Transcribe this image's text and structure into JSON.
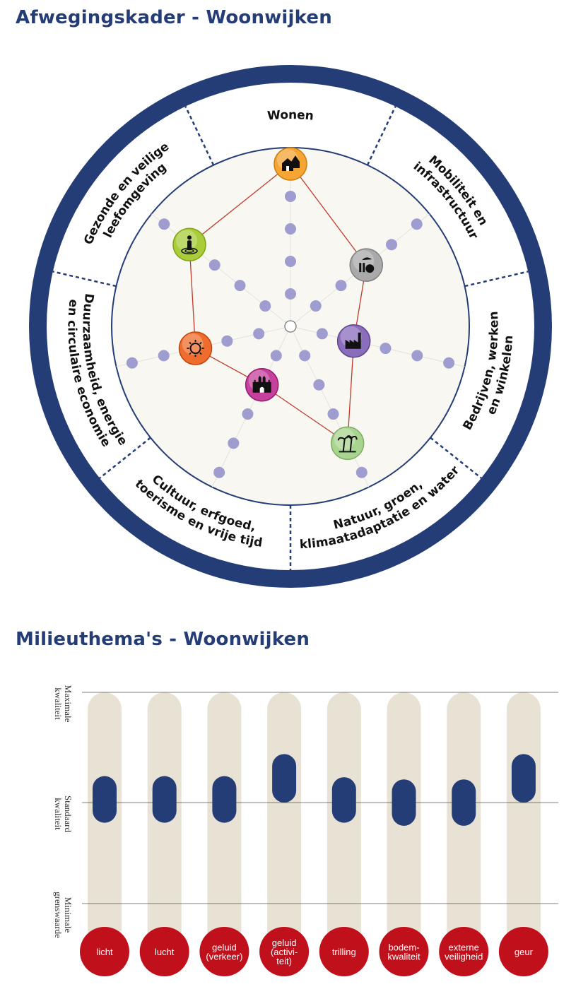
{
  "sections": {
    "wheel_title": "Afwegingskader - Woonwijken",
    "bars_title": "Milieuthema's - Woonwijken"
  },
  "chart_data": [
    {
      "type": "radar",
      "title": "Afwegingskader - Woonwijken",
      "scale_max": 5,
      "categories": [
        {
          "label_lines": [
            "Wonen"
          ],
          "icon": "houses-icon",
          "icon_color": "#f4a534",
          "value": 5,
          "angle": 90
        },
        {
          "label_lines": [
            "Mobiliteit en",
            "infrastructuur"
          ],
          "icon": "transport-icon",
          "icon_color": "#a9a9a9",
          "value": 3,
          "angle": 39
        },
        {
          "label_lines": [
            "Bedrijven, werken",
            "en winkelen"
          ],
          "icon": "factory-icon",
          "icon_color": "#8a6dbb",
          "value": 2,
          "angle": -13
        },
        {
          "label_lines": [
            "Natuur, groen,",
            "klimaatadaptatie en water"
          ],
          "icon": "palm-trees-icon",
          "icon_color": "#a9d48f",
          "value": 4,
          "angle": -64
        },
        {
          "label_lines": [
            "Cultuur, erfgoed,",
            "toerisme en vrije tijd"
          ],
          "icon": "castle-icon",
          "icon_color": "#c5419b",
          "value": 2,
          "angle": -116
        },
        {
          "label_lines": [
            "Duurzaamheid, energie",
            "en circulaire economie"
          ],
          "icon": "sun-plug-icon",
          "icon_color": "#ee6c2d",
          "value": 3,
          "angle": -167
        },
        {
          "label_lines": [
            "Gezonde en veilige",
            "leefomgeving"
          ],
          "icon": "person-icon",
          "icon_color": "#a9cd3a",
          "value": 4,
          "angle": 141
        }
      ],
      "colors": {
        "ring": "#253d77",
        "plot_bg": "#f8f7f1",
        "dot": "#9f9ccf",
        "polygon_line": "#c0392b"
      }
    },
    {
      "type": "range",
      "title": "Milieuthema's - Woonwijken",
      "y_levels": [
        {
          "label_lines": [
            "Maximale",
            "kwaliteit"
          ],
          "value": 1
        },
        {
          "label_lines": [
            "Standaard",
            "kwaliteit"
          ],
          "value": 0
        },
        {
          "label_lines": [
            "Minimale",
            "grenswaarde"
          ],
          "value": -1
        }
      ],
      "ylim": [
        -1.15,
        1
      ],
      "categories": [
        {
          "label_lines": [
            "licht"
          ],
          "range": [
            -0.2,
            0.24
          ]
        },
        {
          "label_lines": [
            "lucht"
          ],
          "range": [
            -0.2,
            0.24
          ]
        },
        {
          "label_lines": [
            "geluid",
            "(verkeer)"
          ],
          "range": [
            -0.2,
            0.24
          ]
        },
        {
          "label_lines": [
            "geluid",
            "(activi-",
            "teit)"
          ],
          "range": [
            0,
            0.44
          ]
        },
        {
          "label_lines": [
            "trilling"
          ],
          "range": [
            -0.2,
            0.23
          ]
        },
        {
          "label_lines": [
            "bodem-",
            "kwaliteit"
          ],
          "range": [
            -0.23,
            0.21
          ]
        },
        {
          "label_lines": [
            "externe",
            "veiligheid"
          ],
          "range": [
            -0.23,
            0.21
          ]
        },
        {
          "label_lines": [
            "geur"
          ],
          "range": [
            0,
            0.44
          ]
        }
      ],
      "colors": {
        "track": "#e8e2d5",
        "range_bar": "#253d77",
        "label_circle": "#c0101c",
        "grid": "#555555"
      }
    }
  ]
}
